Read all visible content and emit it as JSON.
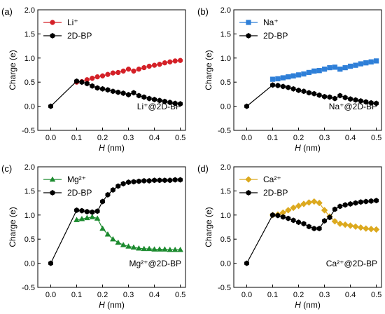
{
  "chart_data": [
    {
      "type": "line",
      "panel_label": "(a)",
      "annotation": "Li⁺@2D-BP",
      "xlabel_italic": "H",
      "xlabel_unit": " (nm)",
      "ylabel": "Charge (e)",
      "xlim": [
        -0.05,
        0.52
      ],
      "ylim": [
        -0.5,
        2.0
      ],
      "xticks": [
        0.0,
        0.1,
        0.2,
        0.3,
        0.4,
        0.5
      ],
      "xtick_labels": [
        "0.0",
        "0.1",
        "0.2",
        "0.3",
        "0.4",
        "0.5"
      ],
      "yticks": [
        -0.5,
        0.0,
        0.5,
        1.0,
        1.5,
        2.0
      ],
      "ytick_labels": [
        "-0.5",
        "0.0",
        "0.5",
        "1.0",
        "1.5",
        "2.0"
      ],
      "legend_position": "top-left",
      "series": [
        {
          "name": "Li⁺",
          "color": "#d42027",
          "marker": "circle",
          "x": [
            0.1,
            0.12,
            0.14,
            0.16,
            0.18,
            0.2,
            0.22,
            0.24,
            0.26,
            0.28,
            0.3,
            0.32,
            0.34,
            0.36,
            0.38,
            0.4,
            0.42,
            0.44,
            0.46,
            0.48,
            0.5
          ],
          "y": [
            0.5,
            0.51,
            0.55,
            0.58,
            0.61,
            0.63,
            0.66,
            0.69,
            0.7,
            0.73,
            0.77,
            0.73,
            0.77,
            0.8,
            0.83,
            0.85,
            0.87,
            0.9,
            0.92,
            0.94,
            0.95
          ]
        },
        {
          "name": "2D-BP",
          "color": "#000000",
          "marker": "hexagon",
          "connect_origin": true,
          "x": [
            0.0,
            0.1,
            0.12,
            0.14,
            0.16,
            0.18,
            0.2,
            0.22,
            0.24,
            0.26,
            0.28,
            0.3,
            0.32,
            0.34,
            0.36,
            0.38,
            0.4,
            0.42,
            0.44,
            0.46,
            0.48,
            0.5
          ],
          "y": [
            0.0,
            0.52,
            0.5,
            0.47,
            0.42,
            0.38,
            0.36,
            0.34,
            0.31,
            0.29,
            0.27,
            0.24,
            0.28,
            0.22,
            0.19,
            0.16,
            0.14,
            0.12,
            0.1,
            0.08,
            0.06,
            0.05
          ]
        }
      ]
    },
    {
      "type": "line",
      "panel_label": "(b)",
      "annotation": "Na⁺@2D-BP",
      "xlabel_italic": "H",
      "xlabel_unit": " (nm)",
      "ylabel": "Charge (e)",
      "xlim": [
        -0.05,
        0.52
      ],
      "ylim": [
        -0.5,
        2.0
      ],
      "xticks": [
        0.0,
        0.1,
        0.2,
        0.3,
        0.4,
        0.5
      ],
      "xtick_labels": [
        "0.0",
        "0.1",
        "0.2",
        "0.3",
        "0.4",
        "0.5"
      ],
      "yticks": [
        -0.5,
        0.0,
        0.5,
        1.0,
        1.5,
        2.0
      ],
      "ytick_labels": [
        "-0.5",
        "0.0",
        "0.5",
        "1.0",
        "1.5",
        "2.0"
      ],
      "legend_position": "top-left",
      "series": [
        {
          "name": "Na⁺",
          "color": "#2e7fd8",
          "marker": "square",
          "x": [
            0.1,
            0.12,
            0.14,
            0.16,
            0.18,
            0.2,
            0.22,
            0.24,
            0.26,
            0.28,
            0.3,
            0.32,
            0.34,
            0.36,
            0.38,
            0.4,
            0.42,
            0.44,
            0.46,
            0.48,
            0.5
          ],
          "y": [
            0.56,
            0.57,
            0.59,
            0.61,
            0.63,
            0.65,
            0.67,
            0.7,
            0.73,
            0.74,
            0.77,
            0.8,
            0.81,
            0.77,
            0.8,
            0.83,
            0.85,
            0.88,
            0.9,
            0.92,
            0.94
          ]
        },
        {
          "name": "2D-BP",
          "color": "#000000",
          "marker": "hexagon",
          "connect_origin": true,
          "x": [
            0.0,
            0.1,
            0.12,
            0.14,
            0.16,
            0.18,
            0.2,
            0.22,
            0.24,
            0.26,
            0.28,
            0.3,
            0.32,
            0.34,
            0.36,
            0.38,
            0.4,
            0.42,
            0.44,
            0.46,
            0.48,
            0.5
          ],
          "y": [
            0.0,
            0.44,
            0.43,
            0.41,
            0.39,
            0.36,
            0.33,
            0.31,
            0.28,
            0.26,
            0.23,
            0.2,
            0.19,
            0.16,
            0.22,
            0.18,
            0.15,
            0.13,
            0.11,
            0.09,
            0.07,
            0.06
          ]
        }
      ]
    },
    {
      "type": "line",
      "panel_label": "(c)",
      "annotation": "Mg²⁺@2D-BP",
      "xlabel_italic": "H",
      "xlabel_unit": " (nm)",
      "ylabel": "Charge (e)",
      "xlim": [
        -0.05,
        0.52
      ],
      "ylim": [
        -0.5,
        2.0
      ],
      "xticks": [
        0.0,
        0.1,
        0.2,
        0.3,
        0.4,
        0.5
      ],
      "xtick_labels": [
        "0.0",
        "0.1",
        "0.2",
        "0.3",
        "0.4",
        "0.5"
      ],
      "yticks": [
        -0.5,
        0.0,
        0.5,
        1.0,
        1.5,
        2.0
      ],
      "ytick_labels": [
        "-0.5",
        "0.0",
        "0.5",
        "1.0",
        "1.5",
        "2.0"
      ],
      "legend_position": "top-left",
      "series": [
        {
          "name": "Mg²⁺",
          "color": "#1b8a2e",
          "marker": "triangle",
          "x": [
            0.1,
            0.12,
            0.14,
            0.16,
            0.18,
            0.2,
            0.22,
            0.24,
            0.26,
            0.28,
            0.3,
            0.32,
            0.34,
            0.36,
            0.38,
            0.4,
            0.42,
            0.44,
            0.46,
            0.48,
            0.5
          ],
          "y": [
            0.9,
            0.92,
            0.94,
            0.96,
            0.93,
            0.72,
            0.6,
            0.5,
            0.43,
            0.38,
            0.35,
            0.33,
            0.31,
            0.3,
            0.3,
            0.29,
            0.29,
            0.29,
            0.28,
            0.28,
            0.28
          ]
        },
        {
          "name": "2D-BP",
          "color": "#000000",
          "marker": "hexagon",
          "connect_origin": true,
          "x": [
            0.0,
            0.1,
            0.12,
            0.14,
            0.16,
            0.18,
            0.2,
            0.22,
            0.24,
            0.26,
            0.28,
            0.3,
            0.32,
            0.34,
            0.36,
            0.38,
            0.4,
            0.42,
            0.44,
            0.46,
            0.48,
            0.5
          ],
          "y": [
            0.0,
            1.1,
            1.09,
            1.07,
            1.06,
            1.08,
            1.28,
            1.42,
            1.52,
            1.6,
            1.65,
            1.68,
            1.69,
            1.7,
            1.71,
            1.71,
            1.72,
            1.72,
            1.72,
            1.72,
            1.73,
            1.73
          ]
        }
      ]
    },
    {
      "type": "line",
      "panel_label": "(d)",
      "annotation": "Ca²⁺@2D-BP",
      "xlabel_italic": "H",
      "xlabel_unit": " (nm)",
      "ylabel": "Charge (e)",
      "xlim": [
        -0.05,
        0.52
      ],
      "ylim": [
        -0.5,
        2.0
      ],
      "xticks": [
        0.0,
        0.1,
        0.2,
        0.3,
        0.4,
        0.5
      ],
      "xtick_labels": [
        "0.0",
        "0.1",
        "0.2",
        "0.3",
        "0.4",
        "0.5"
      ],
      "yticks": [
        -0.5,
        0.0,
        0.5,
        1.0,
        1.5,
        2.0
      ],
      "ytick_labels": [
        "-0.5",
        "0.0",
        "0.5",
        "1.0",
        "1.5",
        "2.0"
      ],
      "legend_position": "top-left",
      "series": [
        {
          "name": "Ca²⁺",
          "color": "#dca91e",
          "marker": "diamond",
          "x": [
            0.1,
            0.12,
            0.14,
            0.16,
            0.18,
            0.2,
            0.22,
            0.24,
            0.26,
            0.28,
            0.3,
            0.32,
            0.34,
            0.36,
            0.38,
            0.4,
            0.42,
            0.44,
            0.46,
            0.48,
            0.5
          ],
          "y": [
            1.0,
            1.01,
            1.05,
            1.1,
            1.15,
            1.19,
            1.23,
            1.26,
            1.28,
            1.25,
            1.1,
            0.97,
            0.87,
            0.82,
            0.8,
            0.78,
            0.76,
            0.74,
            0.72,
            0.71,
            0.7
          ]
        },
        {
          "name": "2D-BP",
          "color": "#000000",
          "marker": "hexagon",
          "connect_origin": true,
          "x": [
            0.0,
            0.1,
            0.12,
            0.14,
            0.16,
            0.18,
            0.2,
            0.22,
            0.24,
            0.26,
            0.28,
            0.3,
            0.32,
            0.34,
            0.36,
            0.38,
            0.4,
            0.42,
            0.44,
            0.46,
            0.48,
            0.5
          ],
          "y": [
            0.0,
            1.0,
            0.99,
            0.96,
            0.93,
            0.89,
            0.85,
            0.82,
            0.76,
            0.72,
            0.72,
            0.88,
            0.95,
            1.12,
            1.18,
            1.21,
            1.23,
            1.25,
            1.27,
            1.28,
            1.29,
            1.3
          ]
        }
      ]
    }
  ]
}
